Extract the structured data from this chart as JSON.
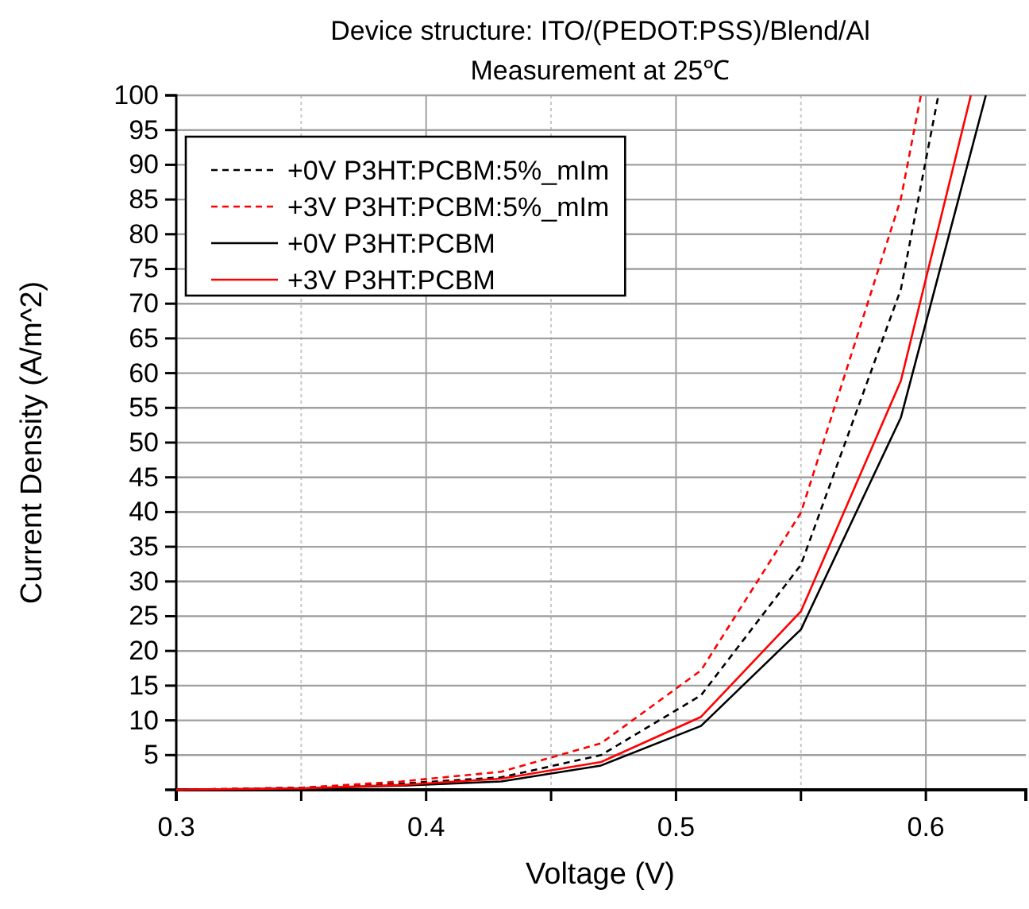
{
  "chart_data": {
    "type": "line",
    "title": "Device structure: ITO/(PEDOT:PSS)/Blend/Al",
    "subtitle": "Measurement at 25℃",
    "xlabel": "Voltage (V)",
    "ylabel": "Current Density (A/m^2)",
    "series": [
      {
        "name": "+0V P3HT:PCBM:5%_mIm",
        "color": "#000000",
        "line_style": "dashed",
        "x": [
          0.3,
          0.35,
          0.39,
          0.43,
          0.47,
          0.51,
          0.55,
          0.59,
          0.605
        ],
        "values": [
          0,
          0.3,
          0.9,
          1.8,
          5.0,
          13.6,
          32.4,
          72.1,
          100
        ]
      },
      {
        "name": "+3V P3HT:PCBM:5%_mIm",
        "color": "#ff0000",
        "line_style": "dashed",
        "x": [
          0.3,
          0.35,
          0.39,
          0.43,
          0.47,
          0.51,
          0.55,
          0.59,
          0.598
        ],
        "values": [
          0,
          0.3,
          1.2,
          2.6,
          6.7,
          17.2,
          39.9,
          85.1,
          100
        ]
      },
      {
        "name": "+0V P3HT:PCBM",
        "color": "#000000",
        "line_style": "solid",
        "x": [
          0.3,
          0.35,
          0.39,
          0.43,
          0.47,
          0.51,
          0.55,
          0.59,
          0.624
        ],
        "values": [
          0,
          0.2,
          0.6,
          1.2,
          3.5,
          9.2,
          23.1,
          53.6,
          100
        ]
      },
      {
        "name": "+3V P3HT:PCBM",
        "color": "#ff0000",
        "line_style": "solid",
        "x": [
          0.3,
          0.35,
          0.39,
          0.43,
          0.47,
          0.51,
          0.55,
          0.59,
          0.618
        ],
        "values": [
          0,
          0.2,
          0.7,
          1.6,
          4.0,
          10.5,
          25.7,
          58.9,
          100
        ]
      }
    ],
    "xlim": [
      0.3,
      0.64
    ],
    "xticks": [
      0.3,
      {
        "value": 0.35,
        "label": null
      },
      0.4,
      {
        "value": 0.45,
        "label": null
      },
      0.5,
      {
        "value": 0.55,
        "label": null
      },
      0.6
    ],
    "ylim": [
      0,
      100
    ],
    "yticks": [
      {
        "value": 0,
        "label": null
      },
      5,
      10,
      15,
      20,
      25,
      30,
      35,
      40,
      45,
      50,
      55,
      60,
      65,
      70,
      75,
      80,
      85,
      90,
      95,
      100
    ],
    "grid": true,
    "legend": "top left",
    "marker": "none"
  }
}
